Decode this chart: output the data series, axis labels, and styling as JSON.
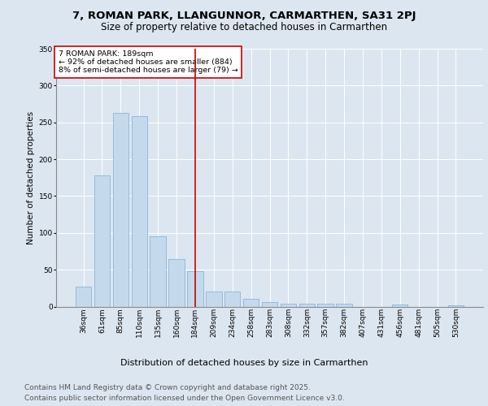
{
  "title1": "7, ROMAN PARK, LLANGUNNOR, CARMARTHEN, SA31 2PJ",
  "title2": "Size of property relative to detached houses in Carmarthen",
  "xlabel": "Distribution of detached houses by size in Carmarthen",
  "ylabel": "Number of detached properties",
  "categories": [
    "36sqm",
    "61sqm",
    "85sqm",
    "110sqm",
    "135sqm",
    "160sqm",
    "184sqm",
    "209sqm",
    "234sqm",
    "258sqm",
    "283sqm",
    "308sqm",
    "332sqm",
    "357sqm",
    "382sqm",
    "407sqm",
    "431sqm",
    "456sqm",
    "481sqm",
    "505sqm",
    "530sqm"
  ],
  "values": [
    27,
    178,
    263,
    258,
    95,
    64,
    48,
    20,
    20,
    10,
    6,
    4,
    4,
    4,
    4,
    0,
    0,
    3,
    0,
    0,
    2
  ],
  "bar_color": "#c5d9ed",
  "bar_edge_color": "#7aadd4",
  "vline_x_index": 6,
  "vline_color": "#cc0000",
  "annotation_title": "7 ROMAN PARK: 189sqm",
  "annotation_line1": "← 92% of detached houses are smaller (884)",
  "annotation_line2": "8% of semi-detached houses are larger (79) →",
  "annotation_box_color": "#cc0000",
  "annotation_bg": "#ffffff",
  "ylim": [
    0,
    350
  ],
  "yticks": [
    0,
    50,
    100,
    150,
    200,
    250,
    300,
    350
  ],
  "bg_color": "#dce6f0",
  "plot_bg_color": "#dce6f0",
  "grid_color": "#ffffff",
  "footer1": "Contains HM Land Registry data © Crown copyright and database right 2025.",
  "footer2": "Contains public sector information licensed under the Open Government Licence v3.0.",
  "title_fontsize": 9.5,
  "subtitle_fontsize": 8.5,
  "ylabel_fontsize": 7.5,
  "xlabel_fontsize": 8,
  "tick_fontsize": 6.5,
  "ann_fontsize": 6.8,
  "footer_fontsize": 6.5
}
